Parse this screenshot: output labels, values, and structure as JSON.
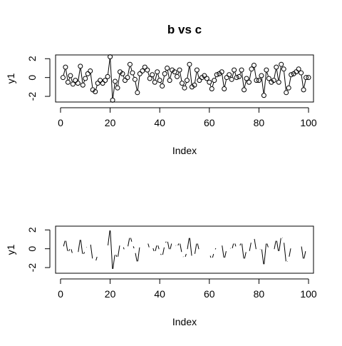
{
  "chart_data": [
    {
      "type": "line",
      "title": "b vs c",
      "xlabel": "Index",
      "ylabel": "y1",
      "xlim": [
        -2,
        102
      ],
      "ylim": [
        -2.6,
        2.4
      ],
      "x_ticks": [
        0,
        20,
        40,
        60,
        80,
        100
      ],
      "y_ticks": [
        -2,
        0,
        2
      ],
      "grid": false,
      "legend": "none",
      "series": [
        {
          "style": "points-and-line-segments",
          "x": [
            1,
            2,
            3,
            4,
            5,
            6,
            7,
            8,
            9,
            10,
            11,
            12,
            13,
            14,
            15,
            16,
            17,
            18,
            19,
            20,
            21,
            22,
            23,
            24,
            25,
            26,
            27,
            28,
            29,
            30,
            31,
            32,
            33,
            34,
            35,
            36,
            37,
            38,
            39,
            40,
            41,
            42,
            43,
            44,
            45,
            46,
            47,
            48,
            49,
            50,
            51,
            52,
            53,
            54,
            55,
            56,
            57,
            58,
            59,
            60,
            61,
            62,
            63,
            64,
            65,
            66,
            67,
            68,
            69,
            70,
            71,
            72,
            73,
            74,
            75,
            76,
            77,
            78,
            79,
            80,
            81,
            82,
            83,
            84,
            85,
            86,
            87,
            88,
            89,
            90,
            91,
            92,
            93,
            94,
            95,
            96,
            97,
            98,
            99,
            100
          ],
          "y": [
            0.0,
            1.1,
            -0.5,
            0.2,
            -0.7,
            -0.3,
            -0.6,
            1.2,
            -0.8,
            -0.1,
            0.4,
            0.7,
            -1.3,
            -1.5,
            -0.6,
            -0.3,
            -0.6,
            -0.3,
            0.1,
            2.2,
            -2.4,
            -0.4,
            -1.1,
            0.6,
            0.4,
            -0.3,
            0.0,
            1.4,
            0.5,
            -0.2,
            -1.6,
            0.4,
            0.7,
            1.1,
            0.8,
            -0.1,
            0.3,
            -0.5,
            0.6,
            -0.3,
            -0.9,
            0.4,
            1.0,
            -0.3,
            0.8,
            0.6,
            0.1,
            0.8,
            -0.6,
            -1.1,
            -0.3,
            1.4,
            -1.0,
            -0.8,
            0.8,
            -0.3,
            0.0,
            0.2,
            -0.1,
            -0.5,
            -1.2,
            -0.3,
            0.3,
            0.4,
            0.6,
            -1.2,
            0.0,
            0.3,
            -0.2,
            0.8,
            0.0,
            0.1,
            0.8,
            -1.3,
            -0.1,
            -0.5,
            0.9,
            1.3,
            -0.3,
            -0.3,
            0.2,
            -1.9,
            0.8,
            -0.1,
            -0.5,
            -0.3,
            1.1,
            -0.5,
            1.4,
            0.9,
            -1.6,
            -1.1,
            0.3,
            0.4,
            0.6,
            0.9,
            0.5,
            -1.3,
            0.0,
            0.0
          ]
        }
      ]
    },
    {
      "type": "line",
      "title": "",
      "xlabel": "Index",
      "ylabel": "y1",
      "xlim": [
        -2,
        102
      ],
      "ylim": [
        -2.6,
        2.4
      ],
      "x_ticks": [
        0,
        20,
        40,
        60,
        80,
        100
      ],
      "y_ticks": [
        -2,
        0,
        2
      ],
      "grid": false,
      "legend": "none",
      "series": [
        {
          "style": "line-segments-only",
          "x": [
            1,
            2,
            3,
            4,
            5,
            6,
            7,
            8,
            9,
            10,
            11,
            12,
            13,
            14,
            15,
            16,
            17,
            18,
            19,
            20,
            21,
            22,
            23,
            24,
            25,
            26,
            27,
            28,
            29,
            30,
            31,
            32,
            33,
            34,
            35,
            36,
            37,
            38,
            39,
            40,
            41,
            42,
            43,
            44,
            45,
            46,
            47,
            48,
            49,
            50,
            51,
            52,
            53,
            54,
            55,
            56,
            57,
            58,
            59,
            60,
            61,
            62,
            63,
            64,
            65,
            66,
            67,
            68,
            69,
            70,
            71,
            72,
            73,
            74,
            75,
            76,
            77,
            78,
            79,
            80,
            81,
            82,
            83,
            84,
            85,
            86,
            87,
            88,
            89,
            90,
            91,
            92,
            93,
            94,
            95,
            96,
            97,
            98,
            99,
            100
          ],
          "y": [
            0.0,
            1.1,
            -0.5,
            0.2,
            -0.7,
            -0.3,
            -0.6,
            1.2,
            -0.8,
            -0.1,
            0.4,
            0.7,
            -1.3,
            -1.5,
            -0.6,
            -0.3,
            -0.6,
            -0.3,
            0.1,
            2.2,
            -2.4,
            -0.4,
            -1.1,
            0.6,
            0.4,
            -0.3,
            0.0,
            1.4,
            0.5,
            -0.2,
            -1.6,
            0.4,
            0.7,
            1.1,
            0.8,
            -0.1,
            0.3,
            -0.5,
            0.6,
            -0.3,
            -0.9,
            0.4,
            1.0,
            -0.3,
            0.8,
            0.6,
            0.1,
            0.8,
            -0.6,
            -1.1,
            -0.3,
            1.4,
            -1.0,
            -0.8,
            0.8,
            -0.3,
            0.0,
            0.2,
            -0.1,
            -0.5,
            -1.2,
            -0.3,
            0.3,
            0.4,
            0.6,
            -1.2,
            0.0,
            0.3,
            -0.2,
            0.8,
            0.0,
            0.1,
            0.8,
            -1.3,
            -0.1,
            -0.5,
            0.9,
            1.3,
            -0.3,
            -0.3,
            0.2,
            -1.9,
            0.8,
            -0.1,
            -0.5,
            -0.3,
            1.1,
            -0.5,
            1.4,
            0.9,
            -1.6,
            -1.1,
            0.3,
            0.4,
            0.6,
            0.9,
            0.5,
            -1.3,
            0.0,
            0.0
          ]
        }
      ]
    }
  ]
}
